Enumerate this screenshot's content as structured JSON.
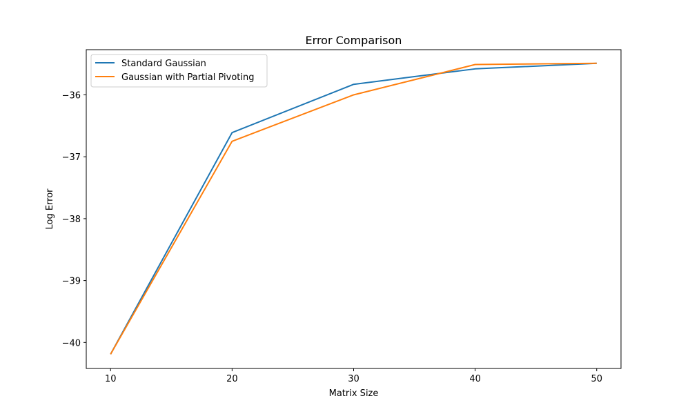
{
  "chart_data": {
    "type": "line",
    "title": "Error Comparison",
    "xlabel": "Matrix Size",
    "ylabel": "Log Error",
    "x": [
      10,
      20,
      30,
      40,
      50
    ],
    "xticks": [
      10,
      20,
      30,
      40,
      50
    ],
    "yticks": [
      -40,
      -39,
      -38,
      -37,
      -36
    ],
    "ytick_labels": [
      "−40",
      "−39",
      "−38",
      "−37",
      "−36"
    ],
    "xlim": [
      8,
      52
    ],
    "ylim": [
      -40.42,
      -35.27
    ],
    "grid": false,
    "legend_position": "top-left",
    "series": [
      {
        "name": "Standard Gaussian",
        "color": "#1f77b4",
        "values": [
          -40.19,
          -36.61,
          -35.83,
          -35.58,
          -35.49
        ]
      },
      {
        "name": "Gaussian with Partial Pivoting",
        "color": "#ff7f0e",
        "values": [
          -40.19,
          -36.75,
          -36.0,
          -35.51,
          -35.49
        ]
      }
    ]
  }
}
